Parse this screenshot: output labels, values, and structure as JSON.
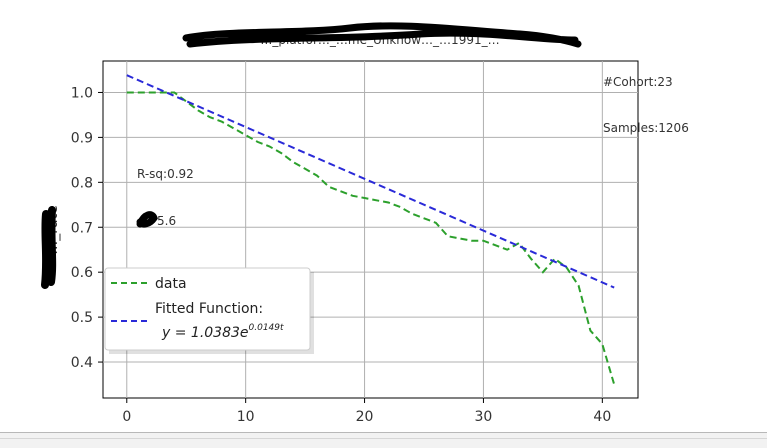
{
  "chart_data": {
    "type": "line",
    "title": "…_platfor…_…me_Unknow…_…1991_…",
    "xlabel": "",
    "ylabel": "…_rate",
    "xlim": [
      -2,
      43
    ],
    "ylim": [
      0.32,
      1.07
    ],
    "xticks": [
      0,
      10,
      20,
      30,
      40
    ],
    "yticks": [
      0.4,
      0.5,
      0.6,
      0.7,
      0.8,
      0.9,
      1.0
    ],
    "grid": true,
    "legend_position": "lower-left",
    "series": [
      {
        "name": "data",
        "color": "#2ca02c",
        "style": "dashed",
        "x": [
          0,
          1,
          2,
          3,
          4,
          5,
          6,
          7,
          8,
          9,
          10,
          11,
          12,
          13,
          14,
          15,
          16,
          17,
          18,
          19,
          20,
          21,
          22,
          23,
          24,
          25,
          26,
          27,
          28,
          29,
          30,
          31,
          32,
          33,
          34,
          35,
          36,
          37,
          38,
          39,
          40,
          41
        ],
        "y": [
          1.0,
          1.0,
          1.0,
          1.0,
          1.0,
          0.98,
          0.96,
          0.945,
          0.935,
          0.92,
          0.905,
          0.89,
          0.88,
          0.865,
          0.845,
          0.83,
          0.815,
          0.79,
          0.78,
          0.77,
          0.765,
          0.76,
          0.755,
          0.745,
          0.73,
          0.72,
          0.71,
          0.68,
          0.675,
          0.67,
          0.67,
          0.66,
          0.65,
          0.665,
          0.63,
          0.6,
          0.63,
          0.61,
          0.57,
          0.47,
          0.44,
          0.35
        ]
      },
      {
        "name": "Fitted Function:",
        "color": "#2a2ad8",
        "style": "dashed",
        "x": [
          0,
          41
        ],
        "y": [
          1.0383,
          0.5656
        ]
      }
    ],
    "legend": {
      "data_label": "data",
      "fit_label_line1": "Fitted Function:",
      "fit_formula_prefix": "y = 1.0383e",
      "fit_formula_exponent": "0.0149t"
    },
    "annotations": {
      "cohort": "#Cohort:23",
      "samples": "Samples:1206",
      "rsq": "R-sq:0.92",
      "partial_value": "5.6"
    }
  }
}
